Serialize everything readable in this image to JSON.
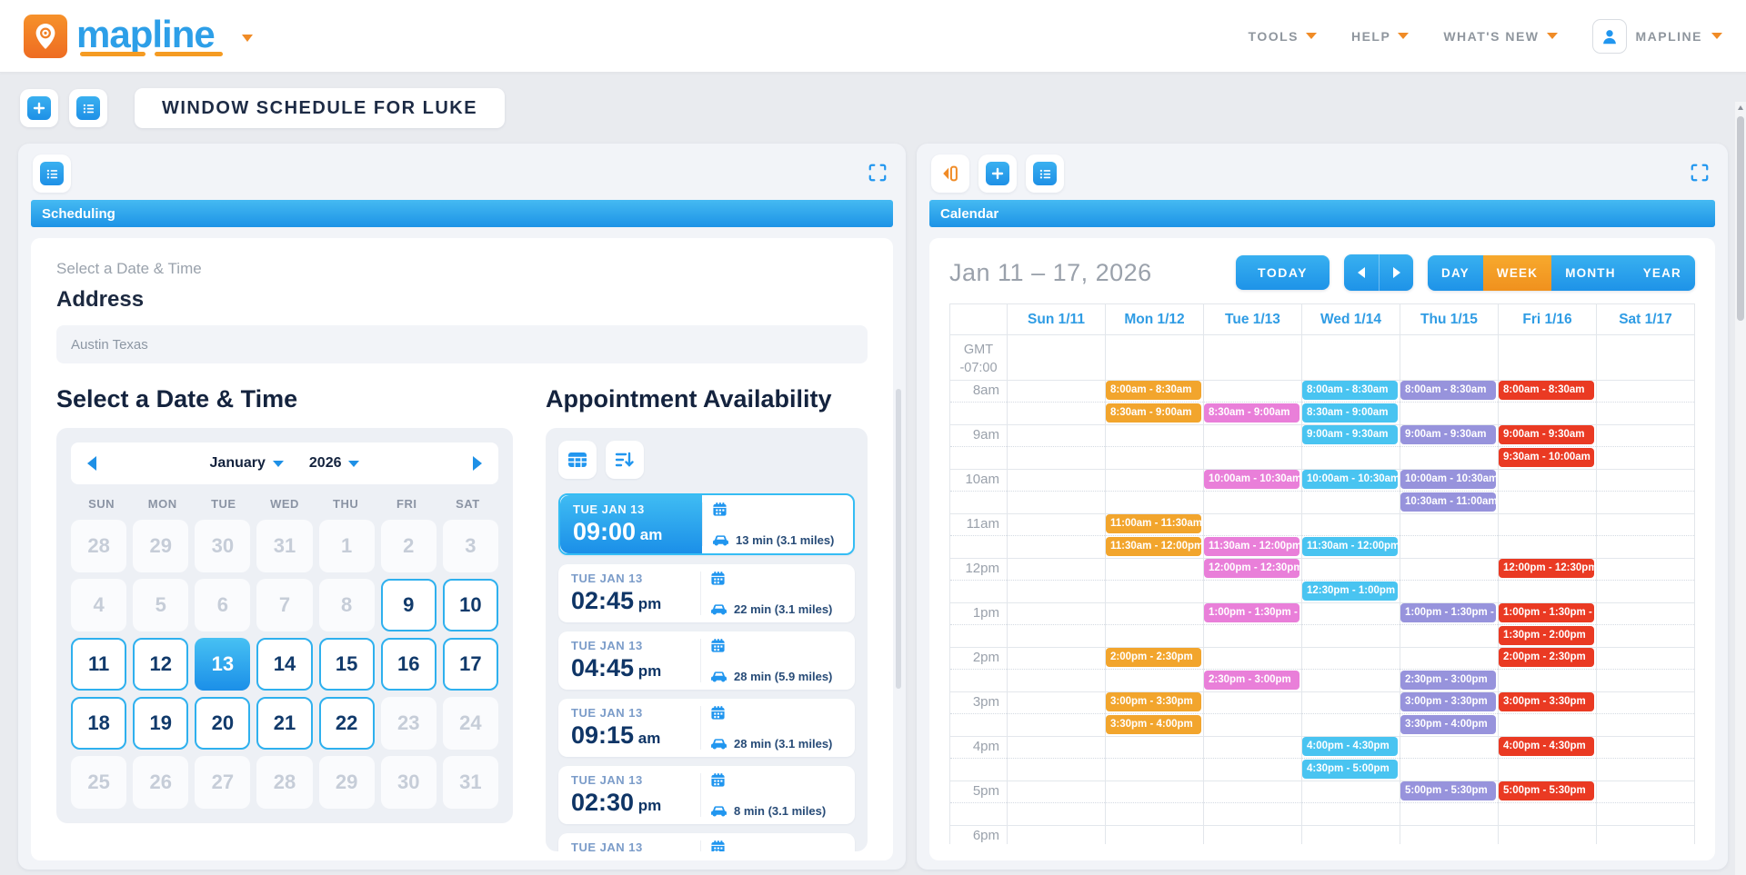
{
  "header": {
    "brand": "mapline",
    "nav": [
      {
        "label": "TOOLS"
      },
      {
        "label": "HELP"
      },
      {
        "label": "WHAT'S NEW"
      }
    ],
    "account_label": "MAPLINE"
  },
  "page_title": "WINDOW SCHEDULE FOR LUKE",
  "colors": {
    "primary_blue": "#2196EF",
    "accent_orange": "#F59B22",
    "selected_date_blue": "#2EB0EE"
  },
  "scheduling": {
    "tab_label": "Scheduling",
    "section_label": "Select a Date & Time",
    "address": {
      "label": "Address",
      "value": "Austin Texas"
    },
    "datetime_heading": "Select a Date & Time",
    "mini_calendar": {
      "month": "January",
      "year": "2026",
      "weekdays": [
        "SUN",
        "MON",
        "TUE",
        "WED",
        "THU",
        "FRI",
        "SAT"
      ],
      "days": [
        {
          "n": "28",
          "state": "disabled"
        },
        {
          "n": "29",
          "state": "disabled"
        },
        {
          "n": "30",
          "state": "disabled"
        },
        {
          "n": "31",
          "state": "disabled"
        },
        {
          "n": "1",
          "state": "disabled"
        },
        {
          "n": "2",
          "state": "disabled"
        },
        {
          "n": "3",
          "state": "disabled"
        },
        {
          "n": "4",
          "state": "disabled"
        },
        {
          "n": "5",
          "state": "disabled"
        },
        {
          "n": "6",
          "state": "disabled"
        },
        {
          "n": "7",
          "state": "disabled"
        },
        {
          "n": "8",
          "state": "disabled"
        },
        {
          "n": "9",
          "state": "available"
        },
        {
          "n": "10",
          "state": "available"
        },
        {
          "n": "11",
          "state": "available"
        },
        {
          "n": "12",
          "state": "available"
        },
        {
          "n": "13",
          "state": "selected"
        },
        {
          "n": "14",
          "state": "available"
        },
        {
          "n": "15",
          "state": "available"
        },
        {
          "n": "16",
          "state": "available"
        },
        {
          "n": "17",
          "state": "available"
        },
        {
          "n": "18",
          "state": "available"
        },
        {
          "n": "19",
          "state": "available"
        },
        {
          "n": "20",
          "state": "available"
        },
        {
          "n": "21",
          "state": "available"
        },
        {
          "n": "22",
          "state": "available"
        },
        {
          "n": "23",
          "state": "disabled"
        },
        {
          "n": "24",
          "state": "disabled"
        },
        {
          "n": "25",
          "state": "disabled"
        },
        {
          "n": "26",
          "state": "disabled"
        },
        {
          "n": "27",
          "state": "disabled"
        },
        {
          "n": "28",
          "state": "disabled"
        },
        {
          "n": "29",
          "state": "disabled"
        },
        {
          "n": "30",
          "state": "disabled"
        },
        {
          "n": "31",
          "state": "disabled"
        }
      ]
    },
    "availability": {
      "heading": "Appointment Availability",
      "slots": [
        {
          "date": "TUE JAN 13",
          "time": "09:00",
          "meridiem": "am",
          "meta": "13 min (3.1 miles)",
          "selected": true
        },
        {
          "date": "TUE JAN 13",
          "time": "02:45",
          "meridiem": "pm",
          "meta": "22 min (3.1 miles)",
          "selected": false
        },
        {
          "date": "TUE JAN 13",
          "time": "04:45",
          "meridiem": "pm",
          "meta": "28 min (5.9 miles)",
          "selected": false
        },
        {
          "date": "TUE JAN 13",
          "time": "09:15",
          "meridiem": "am",
          "meta": "28 min (3.1 miles)",
          "selected": false
        },
        {
          "date": "TUE JAN 13",
          "time": "02:30",
          "meridiem": "pm",
          "meta": "8 min (3.1 miles)",
          "selected": false
        },
        {
          "date": "TUE JAN 13",
          "time": "",
          "meridiem": "",
          "meta": "",
          "selected": false
        }
      ]
    }
  },
  "calendar_panel": {
    "tab_label": "Calendar",
    "range_label": "Jan 11 – 17, 2026",
    "today_label": "TODAY",
    "views": [
      {
        "label": "DAY",
        "active": false
      },
      {
        "label": "WEEK",
        "active": true
      },
      {
        "label": "MONTH",
        "active": false
      },
      {
        "label": "YEAR",
        "active": false
      }
    ],
    "timezone_lines": [
      "GMT",
      "-07:00"
    ],
    "hours": [
      "8am",
      "9am",
      "10am",
      "11am",
      "12pm",
      "1pm",
      "2pm",
      "3pm",
      "4pm",
      "5pm",
      "6pm"
    ],
    "days": [
      {
        "label": "Sun 1/11",
        "color": null,
        "events": []
      },
      {
        "label": "Mon 1/12",
        "color": "#F2A52D",
        "events": [
          {
            "s": 8,
            "t": "8:00am - 8:30am"
          },
          {
            "s": 8.5,
            "t": "8:30am - 9:00am"
          },
          {
            "s": 11,
            "t": "11:00am - 11:30am"
          },
          {
            "s": 11.5,
            "t": "11:30am - 12:00pm"
          },
          {
            "s": 14,
            "t": "2:00pm - 2:30pm"
          },
          {
            "s": 15,
            "t": "3:00pm - 3:30pm"
          },
          {
            "s": 15.5,
            "t": "3:30pm - 4:00pm"
          }
        ]
      },
      {
        "label": "Tue 1/13",
        "color": "#E97FD9",
        "events": [
          {
            "s": 8.5,
            "t": "8:30am - 9:00am"
          },
          {
            "s": 10,
            "t": "10:00am - 10:30am"
          },
          {
            "s": 11.5,
            "t": "11:30am - 12:00pm"
          },
          {
            "s": 12,
            "t": "12:00pm - 12:30pm"
          },
          {
            "s": 13,
            "t": "1:00pm - 1:30pm -"
          },
          {
            "s": 14.5,
            "t": "2:30pm - 3:00pm"
          }
        ]
      },
      {
        "label": "Wed 1/14",
        "color": "#49C4F1",
        "events": [
          {
            "s": 8,
            "t": "8:00am - 8:30am"
          },
          {
            "s": 8.5,
            "t": "8:30am - 9:00am"
          },
          {
            "s": 9,
            "t": "9:00am - 9:30am"
          },
          {
            "s": 10,
            "t": "10:00am - 10:30am"
          },
          {
            "s": 11.5,
            "t": "11:30am - 12:00pm"
          },
          {
            "s": 12.5,
            "t": "12:30pm - 1:00pm"
          },
          {
            "s": 16,
            "t": "4:00pm - 4:30pm"
          },
          {
            "s": 16.5,
            "t": "4:30pm - 5:00pm"
          }
        ]
      },
      {
        "label": "Thu 1/15",
        "color": "#9793DC",
        "events": [
          {
            "s": 8,
            "t": "8:00am - 8:30am"
          },
          {
            "s": 9,
            "t": "9:00am - 9:30am"
          },
          {
            "s": 10,
            "t": "10:00am - 10:30am"
          },
          {
            "s": 10.5,
            "t": "10:30am - 11:00am"
          },
          {
            "s": 13,
            "t": "1:00pm - 1:30pm -"
          },
          {
            "s": 14.5,
            "t": "2:30pm - 3:00pm"
          },
          {
            "s": 15,
            "t": "3:00pm - 3:30pm"
          },
          {
            "s": 15.5,
            "t": "3:30pm - 4:00pm"
          },
          {
            "s": 17,
            "t": "5:00pm - 5:30pm"
          }
        ]
      },
      {
        "label": "Fri 1/16",
        "color": "#EA3A23",
        "events": [
          {
            "s": 8,
            "t": "8:00am - 8:30am"
          },
          {
            "s": 9,
            "t": "9:00am - 9:30am"
          },
          {
            "s": 9.5,
            "t": "9:30am - 10:00am"
          },
          {
            "s": 12,
            "t": "12:00pm - 12:30pm"
          },
          {
            "s": 13,
            "t": "1:00pm - 1:30pm -"
          },
          {
            "s": 13.5,
            "t": "1:30pm - 2:00pm"
          },
          {
            "s": 14,
            "t": "2:00pm - 2:30pm"
          },
          {
            "s": 15,
            "t": "3:00pm - 3:30pm"
          },
          {
            "s": 16,
            "t": "4:00pm - 4:30pm"
          },
          {
            "s": 17,
            "t": "5:00pm - 5:30pm"
          }
        ]
      },
      {
        "label": "Sat 1/17",
        "color": null,
        "events": []
      }
    ]
  }
}
